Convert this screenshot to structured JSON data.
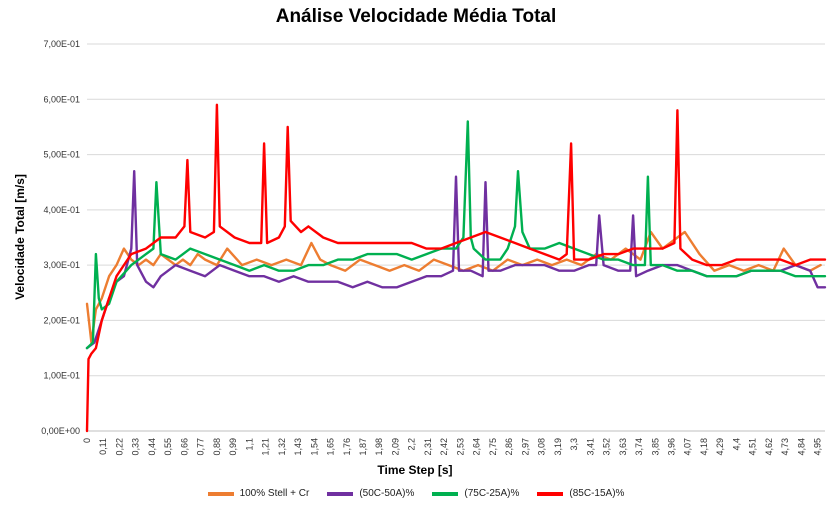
{
  "chart_data": {
    "type": "line",
    "title": "Análise Velocidade Média Total",
    "xlabel": "Time Step [s]",
    "ylabel": "Velocidade Total [m/s]",
    "ylim": [
      0,
      0.7
    ],
    "yticks": [
      "0,00E+00",
      "1,00E-01",
      "2,00E-01",
      "3,00E-01",
      "4,00E-01",
      "5,00E-01",
      "6,00E-01",
      "7,00E-01"
    ],
    "xlim": [
      0,
      5.0
    ],
    "xticks": [
      "0",
      "0,11",
      "0,22",
      "0,33",
      "0,44",
      "0,55",
      "0,66",
      "0,77",
      "0,88",
      "0,99",
      "1,1",
      "1,21",
      "1,32",
      "1,43",
      "1,54",
      "1,65",
      "1,76",
      "1,87",
      "1,98",
      "2,09",
      "2,2",
      "2,31",
      "2,42",
      "2,53",
      "2,64",
      "2,75",
      "2,86",
      "2,97",
      "3,08",
      "3,19",
      "3,3",
      "3,41",
      "3,52",
      "3,63",
      "3,74",
      "3,85",
      "3,96",
      "4,07",
      "4,18",
      "4,29",
      "4,4",
      "4,51",
      "4,62",
      "4,73",
      "4,84",
      "4,95"
    ],
    "grid": "horizontal",
    "legend": "bottom",
    "series": [
      {
        "name": "100% Stell + Cr",
        "color": "#ED7D31",
        "x": [
          0,
          0.03,
          0.06,
          0.1,
          0.15,
          0.2,
          0.25,
          0.3,
          0.35,
          0.4,
          0.45,
          0.5,
          0.55,
          0.6,
          0.65,
          0.7,
          0.75,
          0.8,
          0.88,
          0.95,
          1.05,
          1.15,
          1.25,
          1.35,
          1.45,
          1.52,
          1.58,
          1.65,
          1.75,
          1.85,
          1.95,
          2.05,
          2.15,
          2.25,
          2.35,
          2.45,
          2.55,
          2.65,
          2.75,
          2.85,
          2.95,
          3.05,
          3.15,
          3.25,
          3.35,
          3.45,
          3.55,
          3.65,
          3.75,
          3.82,
          3.9,
          4.0,
          4.05,
          4.15,
          4.25,
          4.35,
          4.45,
          4.55,
          4.65,
          4.72,
          4.8,
          4.9,
          4.97
        ],
        "y": [
          0.23,
          0.16,
          0.22,
          0.24,
          0.28,
          0.3,
          0.33,
          0.31,
          0.3,
          0.31,
          0.3,
          0.32,
          0.31,
          0.3,
          0.31,
          0.3,
          0.32,
          0.31,
          0.3,
          0.33,
          0.3,
          0.31,
          0.3,
          0.31,
          0.3,
          0.34,
          0.31,
          0.3,
          0.29,
          0.31,
          0.3,
          0.29,
          0.3,
          0.29,
          0.31,
          0.3,
          0.29,
          0.3,
          0.29,
          0.31,
          0.3,
          0.31,
          0.3,
          0.31,
          0.3,
          0.32,
          0.31,
          0.33,
          0.31,
          0.36,
          0.33,
          0.35,
          0.36,
          0.32,
          0.29,
          0.3,
          0.29,
          0.3,
          0.29,
          0.33,
          0.3,
          0.29,
          0.3
        ]
      },
      {
        "name": "(50C-50A)%",
        "color": "#7030A0",
        "x": [
          0,
          0.05,
          0.1,
          0.15,
          0.2,
          0.25,
          0.3,
          0.32,
          0.34,
          0.4,
          0.45,
          0.5,
          0.6,
          0.7,
          0.8,
          0.9,
          1.0,
          1.1,
          1.2,
          1.3,
          1.4,
          1.5,
          1.6,
          1.7,
          1.8,
          1.9,
          2.0,
          2.1,
          2.2,
          2.3,
          2.4,
          2.48,
          2.5,
          2.52,
          2.6,
          2.68,
          2.7,
          2.72,
          2.8,
          2.9,
          3.0,
          3.1,
          3.2,
          3.3,
          3.4,
          3.45,
          3.47,
          3.5,
          3.6,
          3.68,
          3.7,
          3.72,
          3.8,
          3.9,
          4.0,
          4.1,
          4.2,
          4.3,
          4.4,
          4.5,
          4.6,
          4.7,
          4.8,
          4.9,
          4.95,
          5.0
        ],
        "y": [
          0.15,
          0.16,
          0.2,
          0.24,
          0.27,
          0.28,
          0.33,
          0.47,
          0.3,
          0.27,
          0.26,
          0.28,
          0.3,
          0.29,
          0.28,
          0.3,
          0.29,
          0.28,
          0.28,
          0.27,
          0.28,
          0.27,
          0.27,
          0.27,
          0.26,
          0.27,
          0.26,
          0.26,
          0.27,
          0.28,
          0.28,
          0.29,
          0.46,
          0.29,
          0.29,
          0.28,
          0.45,
          0.29,
          0.29,
          0.3,
          0.3,
          0.3,
          0.29,
          0.29,
          0.3,
          0.3,
          0.39,
          0.3,
          0.29,
          0.29,
          0.39,
          0.28,
          0.29,
          0.3,
          0.3,
          0.29,
          0.28,
          0.28,
          0.28,
          0.29,
          0.29,
          0.29,
          0.3,
          0.29,
          0.26,
          0.26
        ]
      },
      {
        "name": "(75C-25A)%",
        "color": "#00B050",
        "x": [
          0,
          0.04,
          0.06,
          0.08,
          0.1,
          0.15,
          0.2,
          0.3,
          0.4,
          0.45,
          0.47,
          0.5,
          0.6,
          0.7,
          0.8,
          0.9,
          1.0,
          1.1,
          1.2,
          1.3,
          1.4,
          1.5,
          1.6,
          1.7,
          1.8,
          1.9,
          2.0,
          2.1,
          2.2,
          2.3,
          2.4,
          2.5,
          2.55,
          2.58,
          2.6,
          2.62,
          2.7,
          2.8,
          2.85,
          2.9,
          2.92,
          2.95,
          3.0,
          3.1,
          3.2,
          3.3,
          3.4,
          3.5,
          3.6,
          3.7,
          3.78,
          3.8,
          3.82,
          3.9,
          4.0,
          4.1,
          4.2,
          4.3,
          4.4,
          4.5,
          4.6,
          4.7,
          4.8,
          4.9,
          5.0
        ],
        "y": [
          0.15,
          0.16,
          0.32,
          0.24,
          0.22,
          0.23,
          0.27,
          0.3,
          0.32,
          0.33,
          0.45,
          0.32,
          0.31,
          0.33,
          0.32,
          0.31,
          0.3,
          0.29,
          0.3,
          0.29,
          0.29,
          0.3,
          0.3,
          0.31,
          0.31,
          0.32,
          0.32,
          0.32,
          0.31,
          0.32,
          0.33,
          0.33,
          0.35,
          0.56,
          0.35,
          0.33,
          0.31,
          0.31,
          0.33,
          0.37,
          0.47,
          0.36,
          0.33,
          0.33,
          0.34,
          0.33,
          0.32,
          0.31,
          0.31,
          0.3,
          0.3,
          0.46,
          0.3,
          0.3,
          0.29,
          0.29,
          0.28,
          0.28,
          0.28,
          0.29,
          0.29,
          0.29,
          0.28,
          0.28,
          0.28
        ]
      },
      {
        "name": "(85C-15A)%",
        "color": "#FF0000",
        "x": [
          0,
          0.01,
          0.03,
          0.06,
          0.1,
          0.15,
          0.2,
          0.3,
          0.4,
          0.5,
          0.6,
          0.66,
          0.68,
          0.7,
          0.8,
          0.86,
          0.88,
          0.9,
          1.0,
          1.1,
          1.18,
          1.2,
          1.22,
          1.3,
          1.34,
          1.36,
          1.38,
          1.45,
          1.5,
          1.6,
          1.7,
          1.8,
          1.9,
          2.0,
          2.1,
          2.2,
          2.3,
          2.4,
          2.5,
          2.6,
          2.7,
          2.8,
          2.9,
          3.0,
          3.1,
          3.2,
          3.25,
          3.28,
          3.3,
          3.4,
          3.5,
          3.6,
          3.7,
          3.8,
          3.9,
          3.98,
          4.0,
          4.02,
          4.1,
          4.2,
          4.3,
          4.4,
          4.5,
          4.6,
          4.7,
          4.8,
          4.9,
          5.0
        ],
        "y": [
          0.0,
          0.13,
          0.14,
          0.15,
          0.2,
          0.24,
          0.28,
          0.32,
          0.33,
          0.35,
          0.35,
          0.37,
          0.49,
          0.36,
          0.35,
          0.36,
          0.59,
          0.37,
          0.35,
          0.34,
          0.34,
          0.52,
          0.34,
          0.35,
          0.37,
          0.55,
          0.38,
          0.36,
          0.37,
          0.35,
          0.34,
          0.34,
          0.34,
          0.34,
          0.34,
          0.34,
          0.33,
          0.33,
          0.34,
          0.35,
          0.36,
          0.35,
          0.34,
          0.33,
          0.32,
          0.31,
          0.32,
          0.52,
          0.31,
          0.31,
          0.32,
          0.32,
          0.33,
          0.33,
          0.33,
          0.34,
          0.58,
          0.33,
          0.31,
          0.3,
          0.3,
          0.31,
          0.31,
          0.31,
          0.31,
          0.3,
          0.31,
          0.31
        ]
      }
    ]
  }
}
